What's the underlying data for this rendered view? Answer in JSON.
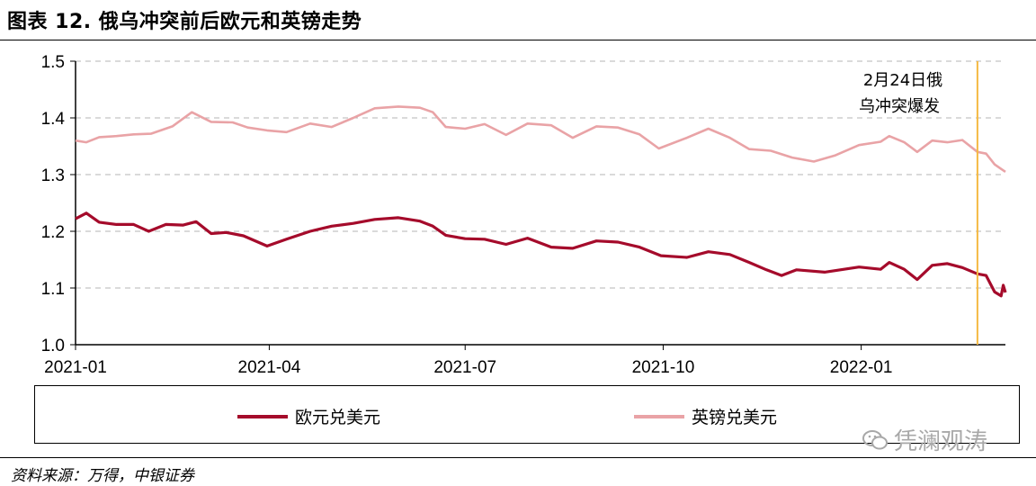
{
  "title": "图表 12. 俄乌冲突前后欧元和英镑走势",
  "source": "资料来源：万得，中银证券",
  "watermark": "凭澜观涛",
  "annotation": {
    "line1": "2月24日俄",
    "line2": "乌冲突爆发",
    "date": "2022-02-24",
    "color": "#F5B942"
  },
  "legend": [
    {
      "label": "欧元兑美元",
      "color": "#A50B2B"
    },
    {
      "label": "英镑兑美元",
      "color": "#E9A3A6"
    }
  ],
  "chart_data": {
    "type": "line",
    "x_start": "2021-01-01",
    "x_end": "2022-03-09",
    "x_ticks": [
      "2021-01",
      "2021-04",
      "2021-07",
      "2021-10",
      "2022-01"
    ],
    "ylim": [
      1.0,
      1.5
    ],
    "y_ticks": [
      "1.0",
      "1.1",
      "1.2",
      "1.3",
      "1.4",
      "1.5"
    ],
    "grid": "horizontal dashed",
    "series": [
      {
        "name": "欧元兑美元",
        "color": "#A50B2B",
        "points": [
          [
            "2021-01-01",
            1.222
          ],
          [
            "2021-01-06",
            1.232
          ],
          [
            "2021-01-12",
            1.216
          ],
          [
            "2021-01-20",
            1.212
          ],
          [
            "2021-01-28",
            1.212
          ],
          [
            "2021-02-04",
            1.2
          ],
          [
            "2021-02-12",
            1.212
          ],
          [
            "2021-02-20",
            1.211
          ],
          [
            "2021-02-26",
            1.217
          ],
          [
            "2021-03-05",
            1.196
          ],
          [
            "2021-03-12",
            1.198
          ],
          [
            "2021-03-20",
            1.192
          ],
          [
            "2021-03-31",
            1.174
          ],
          [
            "2021-04-09",
            1.186
          ],
          [
            "2021-04-20",
            1.2
          ],
          [
            "2021-04-30",
            1.209
          ],
          [
            "2021-05-10",
            1.214
          ],
          [
            "2021-05-20",
            1.221
          ],
          [
            "2021-05-31",
            1.224
          ],
          [
            "2021-06-10",
            1.218
          ],
          [
            "2021-06-16",
            1.209
          ],
          [
            "2021-06-22",
            1.193
          ],
          [
            "2021-07-01",
            1.187
          ],
          [
            "2021-07-10",
            1.186
          ],
          [
            "2021-07-20",
            1.177
          ],
          [
            "2021-07-30",
            1.188
          ],
          [
            "2021-08-10",
            1.172
          ],
          [
            "2021-08-20",
            1.17
          ],
          [
            "2021-08-31",
            1.183
          ],
          [
            "2021-09-10",
            1.181
          ],
          [
            "2021-09-20",
            1.172
          ],
          [
            "2021-09-30",
            1.157
          ],
          [
            "2021-10-12",
            1.154
          ],
          [
            "2021-10-22",
            1.164
          ],
          [
            "2021-11-01",
            1.159
          ],
          [
            "2021-11-10",
            1.145
          ],
          [
            "2021-11-18",
            1.132
          ],
          [
            "2021-11-25",
            1.122
          ],
          [
            "2021-12-02",
            1.132
          ],
          [
            "2021-12-15",
            1.128
          ],
          [
            "2021-12-31",
            1.137
          ],
          [
            "2022-01-10",
            1.133
          ],
          [
            "2022-01-14",
            1.145
          ],
          [
            "2022-01-21",
            1.133
          ],
          [
            "2022-01-27",
            1.115
          ],
          [
            "2022-02-03",
            1.14
          ],
          [
            "2022-02-10",
            1.143
          ],
          [
            "2022-02-17",
            1.136
          ],
          [
            "2022-02-24",
            1.125
          ],
          [
            "2022-02-28",
            1.122
          ],
          [
            "2022-03-04",
            1.093
          ],
          [
            "2022-03-07",
            1.086
          ],
          [
            "2022-03-08",
            1.105
          ],
          [
            "2022-03-09",
            1.092
          ]
        ]
      },
      {
        "name": "英镑兑美元",
        "color": "#E9A3A6",
        "points": [
          [
            "2021-01-01",
            1.36
          ],
          [
            "2021-01-06",
            1.357
          ],
          [
            "2021-01-12",
            1.366
          ],
          [
            "2021-01-20",
            1.368
          ],
          [
            "2021-01-28",
            1.371
          ],
          [
            "2021-02-05",
            1.372
          ],
          [
            "2021-02-15",
            1.385
          ],
          [
            "2021-02-24",
            1.41
          ],
          [
            "2021-03-05",
            1.393
          ],
          [
            "2021-03-15",
            1.392
          ],
          [
            "2021-03-22",
            1.383
          ],
          [
            "2021-03-31",
            1.378
          ],
          [
            "2021-04-09",
            1.375
          ],
          [
            "2021-04-20",
            1.39
          ],
          [
            "2021-04-30",
            1.384
          ],
          [
            "2021-05-10",
            1.4
          ],
          [
            "2021-05-20",
            1.417
          ],
          [
            "2021-05-31",
            1.42
          ],
          [
            "2021-06-10",
            1.418
          ],
          [
            "2021-06-16",
            1.41
          ],
          [
            "2021-06-22",
            1.384
          ],
          [
            "2021-07-01",
            1.381
          ],
          [
            "2021-07-10",
            1.389
          ],
          [
            "2021-07-20",
            1.37
          ],
          [
            "2021-07-30",
            1.39
          ],
          [
            "2021-08-10",
            1.387
          ],
          [
            "2021-08-20",
            1.365
          ],
          [
            "2021-08-31",
            1.385
          ],
          [
            "2021-09-10",
            1.383
          ],
          [
            "2021-09-20",
            1.371
          ],
          [
            "2021-09-29",
            1.346
          ],
          [
            "2021-10-12",
            1.365
          ],
          [
            "2021-10-22",
            1.381
          ],
          [
            "2021-11-01",
            1.365
          ],
          [
            "2021-11-10",
            1.345
          ],
          [
            "2021-11-20",
            1.342
          ],
          [
            "2021-11-30",
            1.33
          ],
          [
            "2021-12-10",
            1.323
          ],
          [
            "2021-12-20",
            1.334
          ],
          [
            "2021-12-31",
            1.352
          ],
          [
            "2022-01-10",
            1.358
          ],
          [
            "2022-01-14",
            1.368
          ],
          [
            "2022-01-21",
            1.357
          ],
          [
            "2022-01-27",
            1.34
          ],
          [
            "2022-02-03",
            1.36
          ],
          [
            "2022-02-10",
            1.357
          ],
          [
            "2022-02-17",
            1.361
          ],
          [
            "2022-02-24",
            1.34
          ],
          [
            "2022-02-28",
            1.337
          ],
          [
            "2022-03-04",
            1.318
          ],
          [
            "2022-03-07",
            1.31
          ],
          [
            "2022-03-09",
            1.305
          ]
        ]
      }
    ]
  }
}
